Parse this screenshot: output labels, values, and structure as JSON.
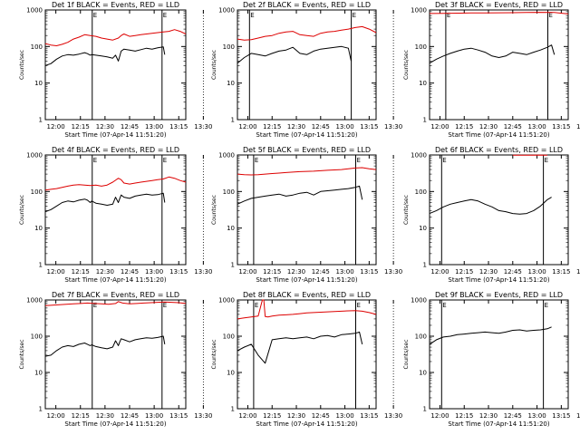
{
  "figure": {
    "x_axis_label": "Start Time (07-Apr-14 11:51:20)",
    "y_axis_label": "Counts/sec",
    "x_ticks": [
      "12:00",
      "12:15",
      "12:30",
      "12:45",
      "13:00",
      "13:15",
      "13:30"
    ],
    "y_ticks": [
      "1",
      "10",
      "100",
      "1000"
    ],
    "marker_labels": [
      "E",
      "E"
    ],
    "colors": {
      "events": "#000000",
      "lld": "#dd0000",
      "background": "#ffffff"
    }
  },
  "chart_data": [
    {
      "type": "line",
      "title": "Det 1f BLACK = Events, RED = LLD",
      "yscale": "log",
      "ylim": [
        1,
        1000
      ],
      "xlim": [
        0,
        100
      ],
      "x_tick_values": [
        7.5,
        25,
        42.5,
        60,
        77.5,
        95,
        112.5
      ],
      "event_markers": [
        33.4,
        83.1
      ],
      "series": [
        {
          "name": "Events",
          "color": "#000000",
          "x": [
            0,
            4,
            8,
            12,
            16,
            20,
            24,
            28,
            30,
            32,
            33,
            36,
            40,
            44,
            48,
            50,
            52,
            53,
            54,
            56,
            60,
            64,
            68,
            72,
            76,
            80,
            84,
            85
          ],
          "y": [
            30,
            34,
            45,
            55,
            60,
            58,
            62,
            68,
            64,
            58,
            60,
            58,
            55,
            52,
            48,
            58,
            40,
            55,
            75,
            85,
            80,
            75,
            82,
            90,
            85,
            92,
            98,
            60
          ]
        },
        {
          "name": "LLD",
          "color": "#dd0000",
          "x": [
            0,
            4,
            8,
            12,
            16,
            20,
            24,
            28,
            32,
            36,
            40,
            44,
            48,
            52,
            54,
            56,
            60,
            64,
            68,
            72,
            76,
            80,
            84,
            88,
            92,
            96,
            100
          ],
          "y": [
            120,
            110,
            105,
            115,
            130,
            160,
            180,
            210,
            200,
            190,
            170,
            160,
            150,
            170,
            200,
            220,
            190,
            200,
            210,
            220,
            230,
            240,
            250,
            260,
            290,
            260,
            220
          ]
        }
      ]
    },
    {
      "type": "line",
      "title": "Det 2f BLACK = Events, RED = LLD",
      "yscale": "log",
      "ylim": [
        1,
        1000
      ],
      "xlim": [
        0,
        100
      ],
      "x_tick_values": [
        7.5,
        25,
        42.5,
        60,
        77.5,
        95,
        112.5
      ],
      "event_markers": [
        8.7,
        82.1
      ],
      "series": [
        {
          "name": "Events",
          "color": "#000000",
          "x": [
            0,
            5,
            10,
            15,
            20,
            25,
            30,
            35,
            40,
            45,
            50,
            55,
            60,
            65,
            70,
            75,
            80,
            82
          ],
          "y": [
            35,
            50,
            65,
            60,
            55,
            65,
            75,
            80,
            95,
            65,
            60,
            75,
            85,
            90,
            95,
            100,
            90,
            40
          ]
        },
        {
          "name": "LLD",
          "color": "#dd0000",
          "x": [
            0,
            5,
            10,
            15,
            20,
            25,
            30,
            35,
            40,
            45,
            50,
            55,
            60,
            65,
            70,
            75,
            80,
            85,
            90,
            95,
            100
          ],
          "y": [
            160,
            150,
            155,
            170,
            190,
            200,
            230,
            250,
            260,
            210,
            200,
            190,
            230,
            250,
            260,
            280,
            300,
            330,
            350,
            300,
            240
          ]
        }
      ]
    },
    {
      "type": "line",
      "title": "Det 3f BLACK = Events, RED = LLD",
      "yscale": "log",
      "ylim": [
        1,
        1000
      ],
      "xlim": [
        0,
        100
      ],
      "x_tick_values": [
        7.5,
        25,
        42.5,
        60,
        77.5,
        95,
        112.5
      ],
      "event_markers": [
        11.7,
        85.3
      ],
      "series": [
        {
          "name": "Events",
          "color": "#000000",
          "x": [
            0,
            5,
            10,
            15,
            20,
            25,
            30,
            35,
            40,
            45,
            50,
            55,
            60,
            65,
            70,
            75,
            80,
            85,
            88,
            90
          ],
          "y": [
            35,
            45,
            55,
            65,
            75,
            85,
            90,
            80,
            70,
            55,
            50,
            55,
            70,
            65,
            60,
            70,
            80,
            95,
            110,
            60
          ]
        },
        {
          "name": "LLD",
          "color": "#dd0000",
          "x": [
            0,
            10,
            20,
            30,
            40,
            50,
            60,
            70,
            80,
            90,
            100
          ],
          "y": [
            800,
            810,
            820,
            830,
            835,
            840,
            845,
            850,
            860,
            850,
            780
          ]
        }
      ]
    },
    {
      "type": "line",
      "title": "Det 4f BLACK = Events, RED = LLD",
      "yscale": "log",
      "ylim": [
        1,
        1000
      ],
      "xlim": [
        0,
        100
      ],
      "x_tick_values": [
        7.5,
        25,
        42.5,
        60,
        77.5,
        95,
        112.5
      ],
      "event_markers": [
        33.4,
        83.1
      ],
      "series": [
        {
          "name": "Events",
          "color": "#000000",
          "x": [
            0,
            4,
            8,
            12,
            16,
            20,
            24,
            28,
            30,
            32,
            33,
            36,
            40,
            44,
            48,
            50,
            52,
            53,
            54,
            56,
            60,
            64,
            68,
            72,
            76,
            80,
            84,
            85
          ],
          "y": [
            28,
            32,
            40,
            50,
            55,
            52,
            58,
            62,
            58,
            50,
            55,
            48,
            45,
            42,
            45,
            70,
            50,
            65,
            80,
            70,
            65,
            75,
            80,
            85,
            80,
            82,
            90,
            50
          ]
        },
        {
          "name": "LLD",
          "color": "#dd0000",
          "x": [
            0,
            4,
            8,
            12,
            16,
            20,
            24,
            28,
            32,
            36,
            40,
            44,
            48,
            52,
            54,
            56,
            60,
            64,
            68,
            72,
            76,
            80,
            84,
            88,
            92,
            96,
            100
          ],
          "y": [
            110,
            115,
            120,
            130,
            140,
            150,
            155,
            150,
            145,
            150,
            140,
            150,
            180,
            230,
            210,
            170,
            160,
            170,
            180,
            190,
            200,
            210,
            220,
            250,
            230,
            200,
            180
          ]
        }
      ]
    },
    {
      "type": "line",
      "title": "Det 5f BLACK = Events, RED = LLD",
      "yscale": "log",
      "ylim": [
        1,
        1000
      ],
      "xlim": [
        0,
        100
      ],
      "x_tick_values": [
        7.5,
        25,
        42.5,
        60,
        77.5,
        95,
        112.5
      ],
      "event_markers": [
        11.7,
        85.3
      ],
      "series": [
        {
          "name": "Events",
          "color": "#000000",
          "x": [
            0,
            5,
            10,
            15,
            20,
            25,
            30,
            35,
            40,
            45,
            50,
            55,
            60,
            65,
            70,
            75,
            80,
            85,
            88,
            90
          ],
          "y": [
            45,
            55,
            65,
            70,
            75,
            80,
            85,
            75,
            80,
            90,
            95,
            80,
            100,
            105,
            110,
            115,
            120,
            130,
            140,
            60
          ]
        },
        {
          "name": "LLD",
          "color": "#dd0000",
          "x": [
            0,
            5,
            10,
            15,
            20,
            25,
            30,
            35,
            40,
            45,
            50,
            55,
            60,
            65,
            70,
            75,
            80,
            85,
            90,
            95,
            100
          ],
          "y": [
            300,
            290,
            285,
            290,
            300,
            310,
            320,
            330,
            340,
            350,
            355,
            360,
            370,
            380,
            390,
            400,
            420,
            440,
            450,
            420,
            400
          ]
        }
      ]
    },
    {
      "type": "line",
      "title": "Det 6f BLACK = Events, RED = LLD",
      "yscale": "log",
      "ylim": [
        1,
        1000
      ],
      "xlim": [
        0,
        100
      ],
      "x_tick_values": [
        7.5,
        25,
        42.5,
        60,
        77.5,
        95,
        112.5
      ],
      "event_markers": [
        8.7,
        82.1
      ],
      "series": [
        {
          "name": "Events",
          "color": "#000000",
          "x": [
            0,
            5,
            10,
            15,
            20,
            25,
            30,
            35,
            40,
            45,
            50,
            55,
            60,
            65,
            70,
            75,
            80,
            85,
            88
          ],
          "y": [
            25,
            30,
            38,
            45,
            50,
            55,
            60,
            55,
            45,
            38,
            30,
            28,
            25,
            24,
            25,
            30,
            40,
            60,
            70
          ]
        },
        {
          "name": "LLD",
          "color": "#dd0000",
          "x": [
            60,
            70,
            80,
            85
          ],
          "y": [
            990,
            985,
            995,
            990
          ]
        }
      ]
    },
    {
      "type": "line",
      "title": "Det 7f BLACK = Events, RED = LLD",
      "yscale": "log",
      "ylim": [
        1,
        1000
      ],
      "xlim": [
        0,
        100
      ],
      "x_tick_values": [
        7.5,
        25,
        42.5,
        60,
        77.5,
        95,
        112.5
      ],
      "event_markers": [
        33.4,
        83.1
      ],
      "series": [
        {
          "name": "Events",
          "color": "#000000",
          "x": [
            0,
            4,
            8,
            12,
            16,
            20,
            24,
            28,
            30,
            32,
            33,
            36,
            40,
            44,
            48,
            50,
            52,
            53,
            54,
            56,
            60,
            64,
            68,
            72,
            76,
            80,
            84,
            85
          ],
          "y": [
            28,
            30,
            40,
            50,
            55,
            52,
            60,
            65,
            60,
            55,
            58,
            52,
            48,
            45,
            50,
            75,
            55,
            70,
            85,
            80,
            70,
            80,
            85,
            90,
            88,
            92,
            100,
            60
          ]
        },
        {
          "name": "LLD",
          "color": "#dd0000",
          "x": [
            0,
            5,
            10,
            15,
            20,
            25,
            30,
            35,
            40,
            45,
            50,
            52,
            55,
            60,
            65,
            70,
            75,
            80,
            85,
            90,
            95,
            100
          ],
          "y": [
            700,
            720,
            740,
            760,
            780,
            800,
            820,
            800,
            780,
            760,
            800,
            900,
            820,
            780,
            800,
            820,
            840,
            860,
            880,
            860,
            840,
            800
          ]
        }
      ]
    },
    {
      "type": "line",
      "title": "Det 8f BLACK = Events, RED = LLD",
      "yscale": "log",
      "ylim": [
        1,
        1000
      ],
      "xlim": [
        0,
        100
      ],
      "x_tick_values": [
        7.5,
        25,
        42.5,
        60,
        77.5,
        95,
        112.5
      ],
      "event_markers": [
        11.7,
        85.3
      ],
      "series": [
        {
          "name": "Events",
          "color": "#000000",
          "x": [
            0,
            5,
            10,
            15,
            20,
            25,
            30,
            35,
            40,
            45,
            50,
            55,
            60,
            65,
            70,
            75,
            80,
            85,
            88,
            90
          ],
          "y": [
            40,
            50,
            60,
            30,
            18,
            80,
            85,
            90,
            85,
            90,
            95,
            85,
            100,
            105,
            95,
            110,
            115,
            120,
            130,
            60
          ]
        },
        {
          "name": "LLD",
          "color": "#dd0000",
          "x": [
            0,
            5,
            10,
            15,
            18,
            19,
            20,
            22,
            25,
            30,
            35,
            40,
            45,
            50,
            55,
            60,
            65,
            70,
            75,
            80,
            85,
            90,
            95,
            100
          ],
          "y": [
            300,
            320,
            340,
            360,
            1000,
            1000,
            350,
            340,
            360,
            380,
            390,
            400,
            420,
            440,
            450,
            460,
            470,
            480,
            490,
            500,
            510,
            490,
            450,
            400
          ]
        }
      ]
    },
    {
      "type": "line",
      "title": "Det 9f BLACK = Events, RED = LLD",
      "yscale": "log",
      "ylim": [
        1,
        1000
      ],
      "xlim": [
        0,
        100
      ],
      "x_tick_values": [
        7.5,
        25,
        42.5,
        60,
        77.5,
        95,
        112.5
      ],
      "event_markers": [
        8.7,
        82.1
      ],
      "series": [
        {
          "name": "Events",
          "color": "#000000",
          "x": [
            0,
            5,
            10,
            15,
            20,
            25,
            30,
            35,
            40,
            45,
            50,
            55,
            60,
            65,
            70,
            75,
            80,
            85,
            88
          ],
          "y": [
            60,
            80,
            95,
            100,
            110,
            115,
            120,
            125,
            130,
            125,
            120,
            130,
            145,
            150,
            140,
            145,
            150,
            160,
            180
          ]
        }
      ]
    }
  ]
}
